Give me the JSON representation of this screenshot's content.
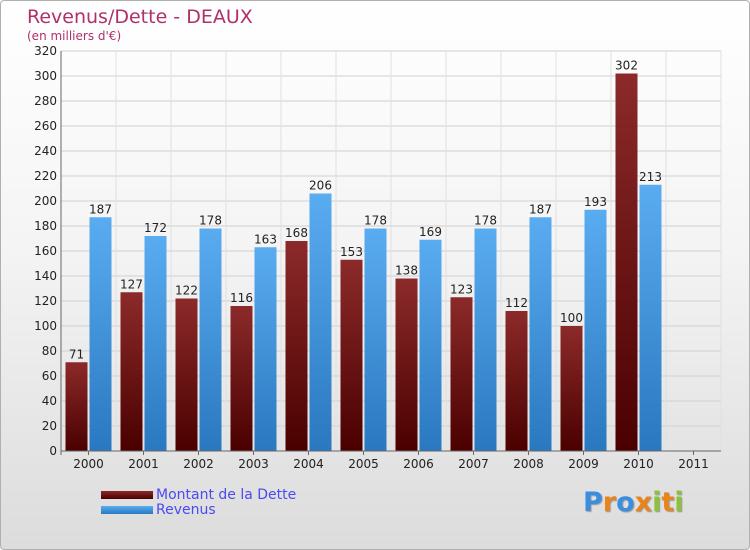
{
  "chart_data": {
    "type": "bar",
    "title": "Revenus/Dette - DEAUX",
    "subtitle": "(en milliers d'€)",
    "categories": [
      "2000",
      "2001",
      "2002",
      "2003",
      "2004",
      "2005",
      "2006",
      "2007",
      "2008",
      "2009",
      "2010",
      "2011"
    ],
    "series": [
      {
        "name": "Montant de la Dette",
        "color": "#7a1515",
        "values": [
          71,
          127,
          122,
          116,
          168,
          153,
          138,
          123,
          112,
          100,
          302,
          null
        ]
      },
      {
        "name": "Revenus",
        "color": "#3d93e0",
        "values": [
          187,
          172,
          178,
          163,
          206,
          178,
          169,
          178,
          187,
          193,
          213,
          null
        ]
      }
    ],
    "ylim": [
      0,
      320
    ],
    "yticks": [
      0,
      20,
      40,
      60,
      80,
      100,
      120,
      140,
      160,
      180,
      200,
      220,
      240,
      260,
      280,
      300,
      320
    ],
    "grid": true,
    "legend_position": "bottom-left"
  },
  "logo": {
    "text": "Proxiti",
    "letter_colors": [
      "#3a8ee0",
      "#e8841a",
      "#3a8ee0",
      "#e8841a",
      "#8ac23a",
      "#e8841a",
      "#8ac23a"
    ]
  }
}
